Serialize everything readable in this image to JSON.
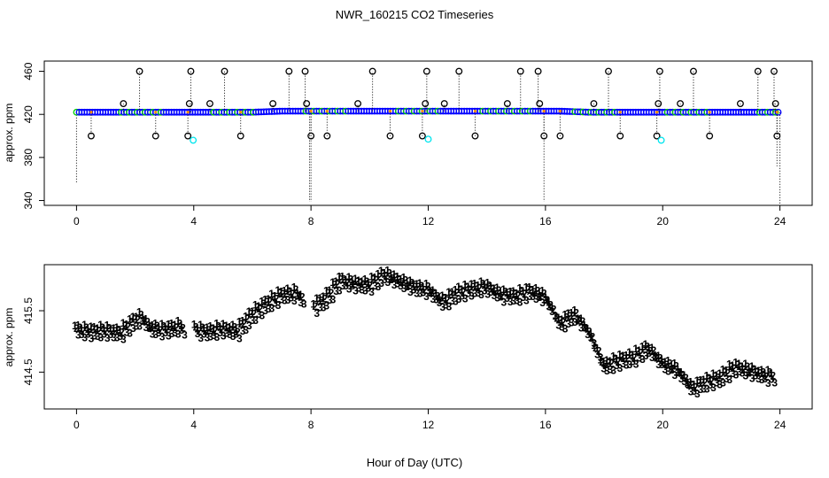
{
  "title": "NWR_160215  CO2 Timeseries",
  "xlabel": "Hour of Day (UTC)",
  "colors": {
    "circle_outline": "#000000",
    "blue": "#0000ff",
    "green": "#00cd00",
    "red": "#ff0000",
    "cyan": "#00e5ee",
    "orange": "#ff8c00"
  },
  "chart_data": [
    {
      "type": "scatter",
      "id": "top",
      "title": "NWR_160215  CO2 Timeseries",
      "xlabel": "",
      "ylabel": "approx. ppm",
      "xlim": [
        -1.1,
        25.1
      ],
      "ylim": [
        335.5,
        469.5
      ],
      "xticks": [
        0,
        4,
        8,
        12,
        16,
        20,
        24
      ],
      "yticks": [
        340,
        380,
        420,
        460
      ],
      "baseline": {
        "x": [
          0,
          0.5,
          1,
          1.5,
          2,
          2.5,
          3,
          3.5,
          4,
          4.5,
          5,
          5.5,
          6,
          6.5,
          7,
          7.5,
          8,
          8.5,
          9,
          9.5,
          10,
          10.5,
          11,
          11.5,
          12,
          12.5,
          13,
          13.5,
          14,
          14.5,
          15,
          15.5,
          16,
          16.5,
          17,
          17.5,
          18,
          18.5,
          19,
          19.5,
          20,
          20.5,
          21,
          21.5,
          22,
          22.5,
          23,
          23.5,
          24
        ],
        "y": [
          422,
          422,
          422,
          422,
          422,
          422,
          422,
          422,
          422,
          422,
          422,
          422,
          422,
          422.5,
          423,
          423,
          423,
          423,
          423,
          423,
          423,
          423,
          423,
          423,
          423,
          423,
          423,
          423,
          423,
          423,
          423,
          423,
          423,
          423,
          422.5,
          422,
          422,
          422,
          422,
          422,
          422,
          422,
          422,
          422,
          422,
          422,
          422,
          422,
          422
        ]
      },
      "spikes_up_460": [
        2.15,
        3.9,
        5.05,
        7.25,
        7.8,
        10.1,
        11.95,
        13.05,
        15.15,
        15.75,
        18.15,
        19.9,
        21.05,
        23.25,
        23.8
      ],
      "spikes_up_430": [
        1.6,
        3.85,
        4.55,
        6.7,
        7.85,
        9.6,
        11.9,
        12.55,
        14.7,
        15.8,
        17.65,
        19.85,
        20.6,
        22.65,
        23.85
      ],
      "spikes_down_400": [
        0.5,
        2.7,
        3.8,
        5.6,
        8.0,
        8.55,
        10.7,
        11.8,
        13.6,
        15.95,
        16.5,
        18.55,
        19.8,
        21.6,
        23.9
      ],
      "cyan_points": [
        [
          3.98,
          396
        ],
        [
          12.0,
          397
        ],
        [
          19.95,
          396
        ]
      ],
      "deep_drops": [
        [
          0.0,
          357
        ],
        [
          7.95,
          339
        ],
        [
          8.0,
          339
        ],
        [
          15.95,
          339
        ],
        [
          23.9,
          372
        ],
        [
          24.0,
          337
        ]
      ]
    },
    {
      "type": "scatter",
      "id": "bottom",
      "xlabel": "Hour of Day (UTC)",
      "ylabel": "approx. ppm",
      "xlim": [
        -1.1,
        25.1
      ],
      "ylim": [
        413.9,
        416.25
      ],
      "xticks": [
        0,
        4,
        8,
        12,
        16,
        20,
        24
      ],
      "yticks": [
        414.5,
        415.5
      ],
      "gaps": [
        [
          3.7,
          4.05
        ],
        [
          7.75,
          8.05
        ]
      ],
      "series": [
        {
          "name": "1",
          "color": "red",
          "offset": 0.09
        },
        {
          "name": "2",
          "color": "green",
          "offset": 0.05
        },
        {
          "name": "3",
          "color": "blue",
          "offset": -0.06
        }
      ],
      "hours": [
        0,
        0.5,
        1,
        1.5,
        2,
        2.25,
        2.5,
        3,
        3.5,
        4,
        4.5,
        5,
        5.5,
        6,
        6.5,
        7,
        7.5,
        8,
        8.5,
        9,
        9.5,
        10,
        10.5,
        11,
        11.5,
        12,
        12.5,
        13,
        13.5,
        14,
        14.5,
        15,
        15.5,
        16,
        16.5,
        17,
        17.5,
        18,
        18.5,
        19,
        19.5,
        20,
        20.5,
        21,
        21.5,
        22,
        22.5,
        23,
        23.5,
        24
      ],
      "values": [
        415.15,
        415.12,
        415.14,
        415.1,
        415.3,
        415.35,
        415.18,
        415.15,
        415.2,
        415.15,
        415.12,
        415.17,
        415.13,
        415.4,
        415.58,
        415.72,
        415.75,
        415.5,
        415.65,
        415.95,
        415.9,
        415.88,
        416.05,
        415.95,
        415.85,
        415.8,
        415.6,
        415.75,
        415.82,
        415.85,
        415.72,
        415.7,
        415.78,
        415.68,
        415.25,
        415.4,
        415.1,
        414.55,
        414.65,
        414.7,
        414.85,
        414.6,
        414.5,
        414.2,
        414.3,
        414.38,
        414.55,
        414.48,
        414.4,
        414.4
      ]
    }
  ]
}
